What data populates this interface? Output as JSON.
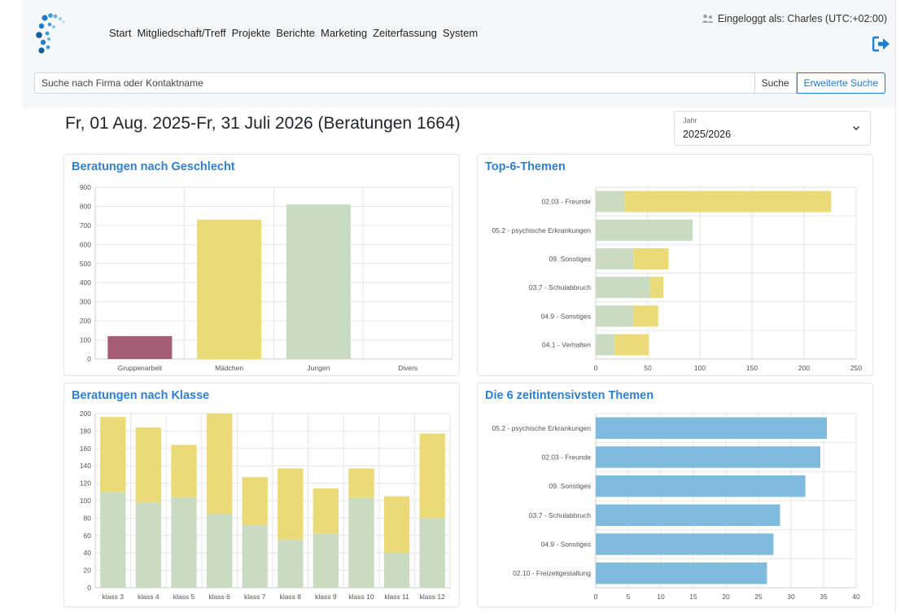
{
  "nav": {
    "items": [
      "Start",
      "Mitgliedschaft/Treff",
      "Projekte",
      "Berichte",
      "Marketing",
      "Zeiterfassung",
      "System"
    ],
    "login_text": "Eingeloggt als: Charles (UTC:+02:00)"
  },
  "search": {
    "placeholder": "Suche nach Firma oder Kontaktname",
    "button": "Suche",
    "advanced_button": "Erweiterte Suche"
  },
  "page": {
    "title": "Fr, 01 Aug. 2025-Fr, 31 Juli 2026 (Beratungen 1664)"
  },
  "year_select": {
    "label": "Jahr",
    "value": "2025/2026"
  },
  "icons": {
    "logo": "logo-icon",
    "user": "user-icon",
    "logout": "logout-icon",
    "dropdown": "chevron-down-icon"
  },
  "colors": {
    "accent": "#2f7fd3",
    "green": "#c9dcc1",
    "yellow": "#ebdb78",
    "maroon": "#a55d75",
    "blue": "#7fbbdd"
  },
  "chart_data": [
    {
      "title": "Beratungen nach Geschlecht",
      "type": "bar",
      "categories": [
        "Gruppenarbeit",
        "Mädchen",
        "Jungen",
        "Divers"
      ],
      "values": [
        120,
        730,
        810,
        0
      ],
      "bar_colors": [
        "#a55d75",
        "#ebdb78",
        "#c9dcc1",
        "#c9dcc1"
      ],
      "ylim": [
        0,
        900
      ],
      "yticks": [
        0,
        100,
        200,
        300,
        400,
        500,
        600,
        700,
        800,
        900
      ],
      "grid": true
    },
    {
      "title": "Top-6-Themen",
      "type": "bar",
      "orientation": "horizontal",
      "stacked": true,
      "categories": [
        "02.03 - Freunde",
        "05.2 - psychische Erkrankungen",
        "09. Sonstiges",
        "03.7 - Schulabbruch",
        "04.9 - Sonstiges",
        "04.1 - Verhalten"
      ],
      "series": [
        {
          "values": [
            28,
            93,
            36,
            52,
            36,
            18
          ],
          "color": "#c9dcc1"
        },
        {
          "values": [
            198,
            0,
            34,
            13,
            24,
            33
          ],
          "color": "#ebdb78"
        }
      ],
      "xlim": [
        0,
        250
      ],
      "xticks": [
        0,
        50,
        100,
        150,
        200,
        250
      ],
      "grid": true
    },
    {
      "title": "Beratungen nach Klasse",
      "type": "bar",
      "stacked": true,
      "categories": [
        "klass 3",
        "klass 4",
        "klass 5",
        "klass 6",
        "klass 7",
        "klass 8",
        "klass 9",
        "klass 10",
        "klass 11",
        "klass 12"
      ],
      "series": [
        {
          "values": [
            110,
            98,
            104,
            85,
            72,
            55,
            62,
            103,
            40,
            80
          ],
          "color": "#c9dcc1"
        },
        {
          "values": [
            86,
            86,
            60,
            115,
            55,
            82,
            52,
            34,
            65,
            97
          ],
          "color": "#ebdb78"
        }
      ],
      "ylim": [
        0,
        200
      ],
      "yticks": [
        0,
        20,
        40,
        60,
        80,
        100,
        120,
        140,
        160,
        180,
        200
      ],
      "grid": true
    },
    {
      "title": "Die 6 zeitintensivsten Themen",
      "type": "bar",
      "orientation": "horizontal",
      "categories": [
        "05.2 - psychische Erkrankungen",
        "02.03 - Freunde",
        "09. Sonstiges",
        "03.7 - Schulabbruch",
        "04.9 - Sonstiges",
        "02.10 - Freizeitgestaltung"
      ],
      "values": [
        35.5,
        34.5,
        32.2,
        28.3,
        27.3,
        26.3
      ],
      "bar_color": "#7fbbdd",
      "xlim": [
        0,
        40
      ],
      "xticks": [
        0,
        5,
        10,
        15,
        20,
        25,
        30,
        35,
        40
      ],
      "grid": true
    }
  ]
}
